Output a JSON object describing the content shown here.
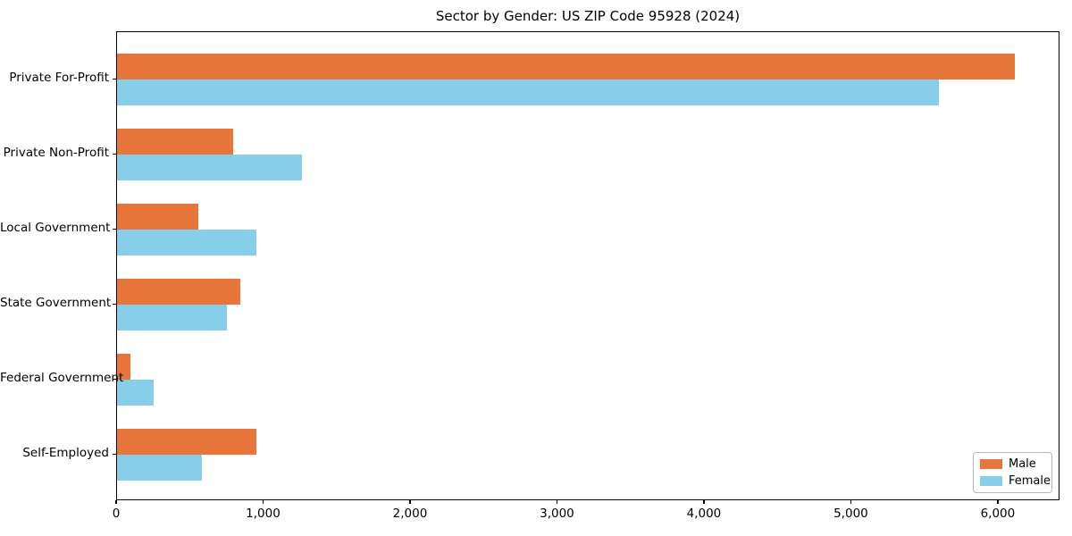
{
  "chart_data": {
    "type": "bar",
    "orientation": "horizontal",
    "title": "Sector by Gender: US ZIP Code 95928 (2024)",
    "categories": [
      "Private For-Profit",
      "Private Non-Profit",
      "Local Government",
      "State Government",
      "Federal Government",
      "Self-Employed"
    ],
    "series": [
      {
        "name": "Male",
        "color": "#e8763b",
        "values": [
          6110,
          790,
          550,
          840,
          90,
          950
        ]
      },
      {
        "name": "Female",
        "color": "#87ceeb",
        "values": [
          5590,
          1260,
          950,
          750,
          250,
          580
        ]
      }
    ],
    "xlabel": "",
    "ylabel": "",
    "xlim": [
      0,
      6420
    ],
    "xticks": [
      0,
      1000,
      2000,
      3000,
      4000,
      5000,
      6000
    ],
    "xtick_labels": [
      "0",
      "1,000",
      "2,000",
      "3,000",
      "4,000",
      "5,000",
      "6,000"
    ],
    "grid": false,
    "legend": {
      "position": "lower right"
    },
    "colors": {
      "male": "#e8763b",
      "female": "#87ceeb",
      "spine": "#000000",
      "background": "#ffffff"
    }
  }
}
